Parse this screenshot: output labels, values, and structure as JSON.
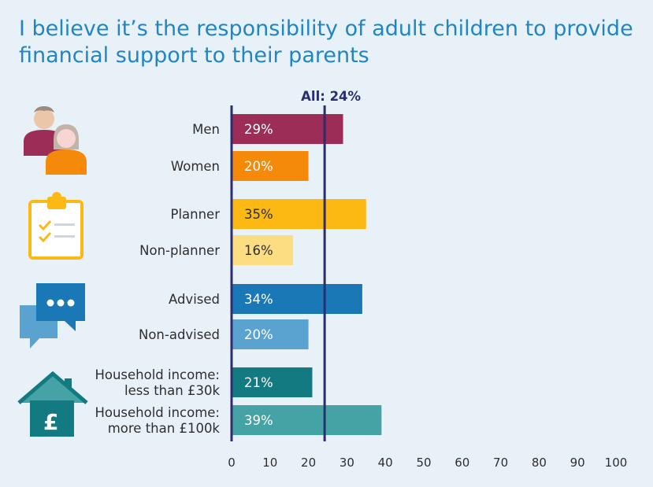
{
  "title_lines": [
    "I believe it’s the responsibility of adult children to provide",
    "financial support to their parents"
  ],
  "chart_data": {
    "type": "bar",
    "orientation": "horizontal",
    "title": "I believe it’s the responsibility of adult children to provide financial support to their parents",
    "categories": [
      [
        "Men"
      ],
      [
        "Women"
      ],
      [
        "Planner"
      ],
      [
        "Non-planner"
      ],
      [
        "Advised"
      ],
      [
        "Non-advised"
      ],
      [
        "Household income:",
        "less than £30k"
      ],
      [
        "Household income:",
        "more than £100k"
      ]
    ],
    "values": [
      29,
      20,
      35,
      16,
      34,
      20,
      21,
      39
    ],
    "value_labels": [
      "29%",
      "20%",
      "35%",
      "16%",
      "34%",
      "20%",
      "21%",
      "39%"
    ],
    "colors": [
      "#9c2d57",
      "#f58a0a",
      "#fdb913",
      "#fddd82",
      "#1a78b6",
      "#5aa3d0",
      "#137a82",
      "#45a3a6"
    ],
    "value_label_colors": [
      "#ffffff",
      "#ffffff",
      "#2e2e2e",
      "#2e2e2e",
      "#ffffff",
      "#ffffff",
      "#ffffff",
      "#ffffff"
    ],
    "xlim": [
      0,
      100
    ],
    "xticks": [
      0,
      10,
      20,
      30,
      40,
      50,
      60,
      70,
      80,
      90,
      100
    ],
    "reference_line": {
      "value": 24,
      "label": "All: 24%",
      "color": "#2b2d6e"
    },
    "grid": false,
    "legend": "none"
  },
  "icons": [
    "people-icon",
    "clipboard-checklist-icon",
    "speech-bubbles-icon",
    "house-pound-icon"
  ],
  "colors": {
    "background": "#e9f1f8",
    "title": "#1f86c4",
    "axis": "#2b2d6e"
  }
}
